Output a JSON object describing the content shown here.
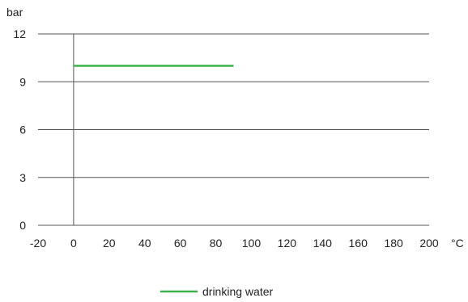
{
  "chart_data": {
    "type": "line",
    "ylabel": "bar",
    "xlabel": "°C",
    "xlim": [
      -20,
      200
    ],
    "ylim": [
      0,
      12
    ],
    "x_ticks": [
      -20,
      0,
      20,
      40,
      60,
      80,
      100,
      120,
      140,
      160,
      180,
      200
    ],
    "y_ticks": [
      0,
      3,
      6,
      9,
      12
    ],
    "grid": "horizontal",
    "legend_position": "bottom-center",
    "series": [
      {
        "name": "drinking water",
        "color": "#3cb44b",
        "x": [
          0,
          90
        ],
        "y": [
          10,
          10
        ]
      }
    ]
  }
}
